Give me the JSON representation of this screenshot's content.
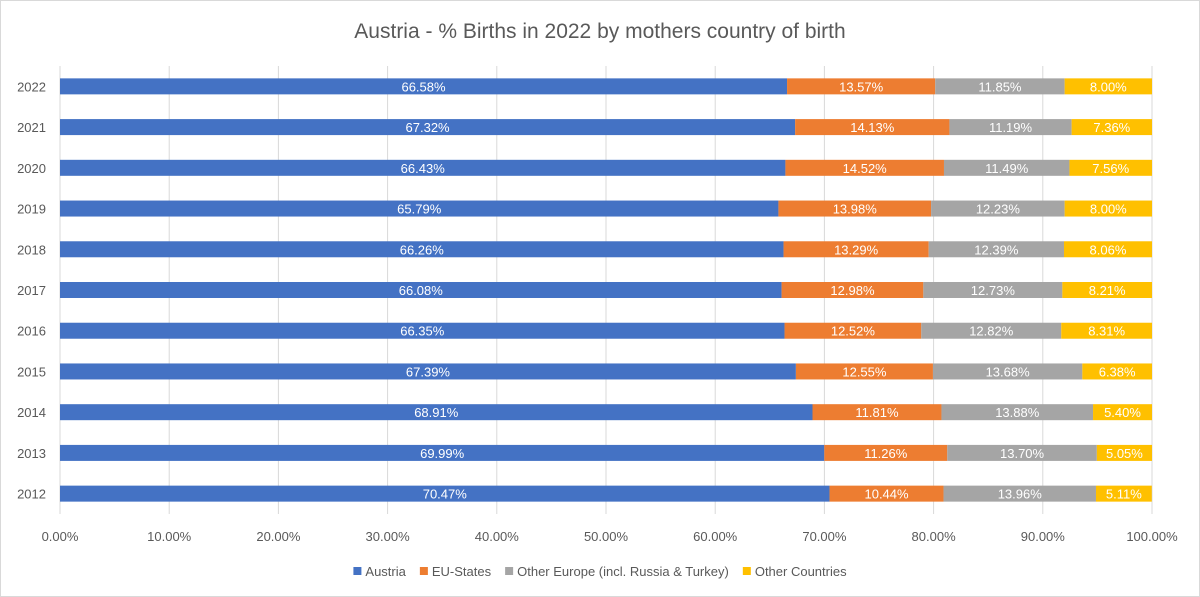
{
  "chart_data": {
    "type": "bar",
    "orientation": "horizontal",
    "stacked": true,
    "title": "Austria - % Births in 2022 by mothers country of birth",
    "categories": [
      "2022",
      "2021",
      "2020",
      "2019",
      "2018",
      "2017",
      "2016",
      "2015",
      "2014",
      "2013",
      "2012"
    ],
    "series": [
      {
        "name": "Austria",
        "color": "#4472C4",
        "label_color": "#ffffff",
        "values": [
          66.58,
          67.32,
          66.43,
          65.79,
          66.26,
          66.08,
          66.35,
          67.39,
          68.91,
          69.99,
          70.47
        ],
        "labels": [
          "66.58%",
          "67.32%",
          "66.43%",
          "65.79%",
          "66.26%",
          "66.08%",
          "66.35%",
          "67.39%",
          "68.91%",
          "69.99%",
          "70.47%"
        ]
      },
      {
        "name": "EU-States",
        "color": "#ED7D31",
        "label_color": "#ffffff",
        "values": [
          13.57,
          14.13,
          14.52,
          13.98,
          13.29,
          12.98,
          12.52,
          12.55,
          11.81,
          11.26,
          10.44
        ],
        "labels": [
          "13.57%",
          "14.13%",
          "14.52%",
          "13.98%",
          "13.29%",
          "12.98%",
          "12.52%",
          "12.55%",
          "11.81%",
          "11.26%",
          "10.44%"
        ]
      },
      {
        "name": "Other Europe (incl. Russia & Turkey)",
        "color": "#A5A5A5",
        "label_color": "#ffffff",
        "values": [
          11.85,
          11.19,
          11.49,
          12.23,
          12.39,
          12.73,
          12.82,
          13.68,
          13.88,
          13.7,
          13.96
        ],
        "labels": [
          "11.85%",
          "11.19%",
          "11.49%",
          "12.23%",
          "12.39%",
          "12.73%",
          "12.82%",
          "13.68%",
          "13.88%",
          "13.70%",
          "13.96%"
        ]
      },
      {
        "name": "Other Countries",
        "color": "#FFC000",
        "label_color": "#ffffff",
        "values": [
          8.0,
          7.36,
          7.56,
          8.0,
          8.06,
          8.21,
          8.31,
          6.38,
          5.4,
          5.05,
          5.11
        ],
        "labels": [
          "8.00%",
          "7.36%",
          "7.56%",
          "8.00%",
          "8.06%",
          "8.21%",
          "8.31%",
          "6.38%",
          "5.40%",
          "5.05%",
          "5.11%"
        ]
      }
    ],
    "xlim": [
      0,
      100
    ],
    "x_ticks": [
      0,
      10,
      20,
      30,
      40,
      50,
      60,
      70,
      80,
      90,
      100
    ],
    "x_tick_labels": [
      "0.00%",
      "10.00%",
      "20.00%",
      "30.00%",
      "40.00%",
      "50.00%",
      "60.00%",
      "70.00%",
      "80.00%",
      "90.00%",
      "100.00%"
    ],
    "xlabel": "",
    "ylabel": "",
    "grid": true,
    "legend_position": "bottom"
  }
}
